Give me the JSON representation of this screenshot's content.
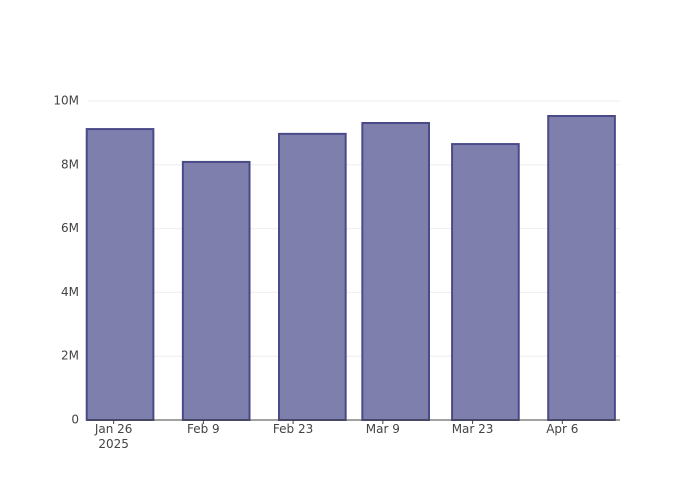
{
  "chart_data": {
    "type": "bar",
    "x": [
      "2025-01-27",
      "2025-02-11",
      "2025-02-26",
      "2025-03-11",
      "2025-03-25",
      "2025-04-09"
    ],
    "values": [
      9120000,
      8090000,
      8970000,
      9310000,
      8650000,
      9530000
    ],
    "color": "#7f7fae",
    "line_color": "#4a4a88",
    "xlim": [
      "2025-01-22",
      "2025-04-15"
    ],
    "xticks": [
      {
        "value": "2025-01-26",
        "label": "Jan 26\n2025"
      },
      {
        "value": "2025-02-09",
        "label": "Feb 9"
      },
      {
        "value": "2025-02-23",
        "label": "Feb 23"
      },
      {
        "value": "2025-03-09",
        "label": "Mar 9"
      },
      {
        "value": "2025-03-23",
        "label": "Mar 23"
      },
      {
        "value": "2025-04-06",
        "label": "Apr 6"
      }
    ],
    "ylim": [
      0,
      10000000
    ],
    "yticks": [
      {
        "value": 0,
        "label": "0"
      },
      {
        "value": 2000000,
        "label": "2M"
      },
      {
        "value": 4000000,
        "label": "4M"
      },
      {
        "value": 6000000,
        "label": "6M"
      },
      {
        "value": 8000000,
        "label": "8M"
      },
      {
        "value": 10000000,
        "label": "10M"
      }
    ],
    "grid": true
  }
}
